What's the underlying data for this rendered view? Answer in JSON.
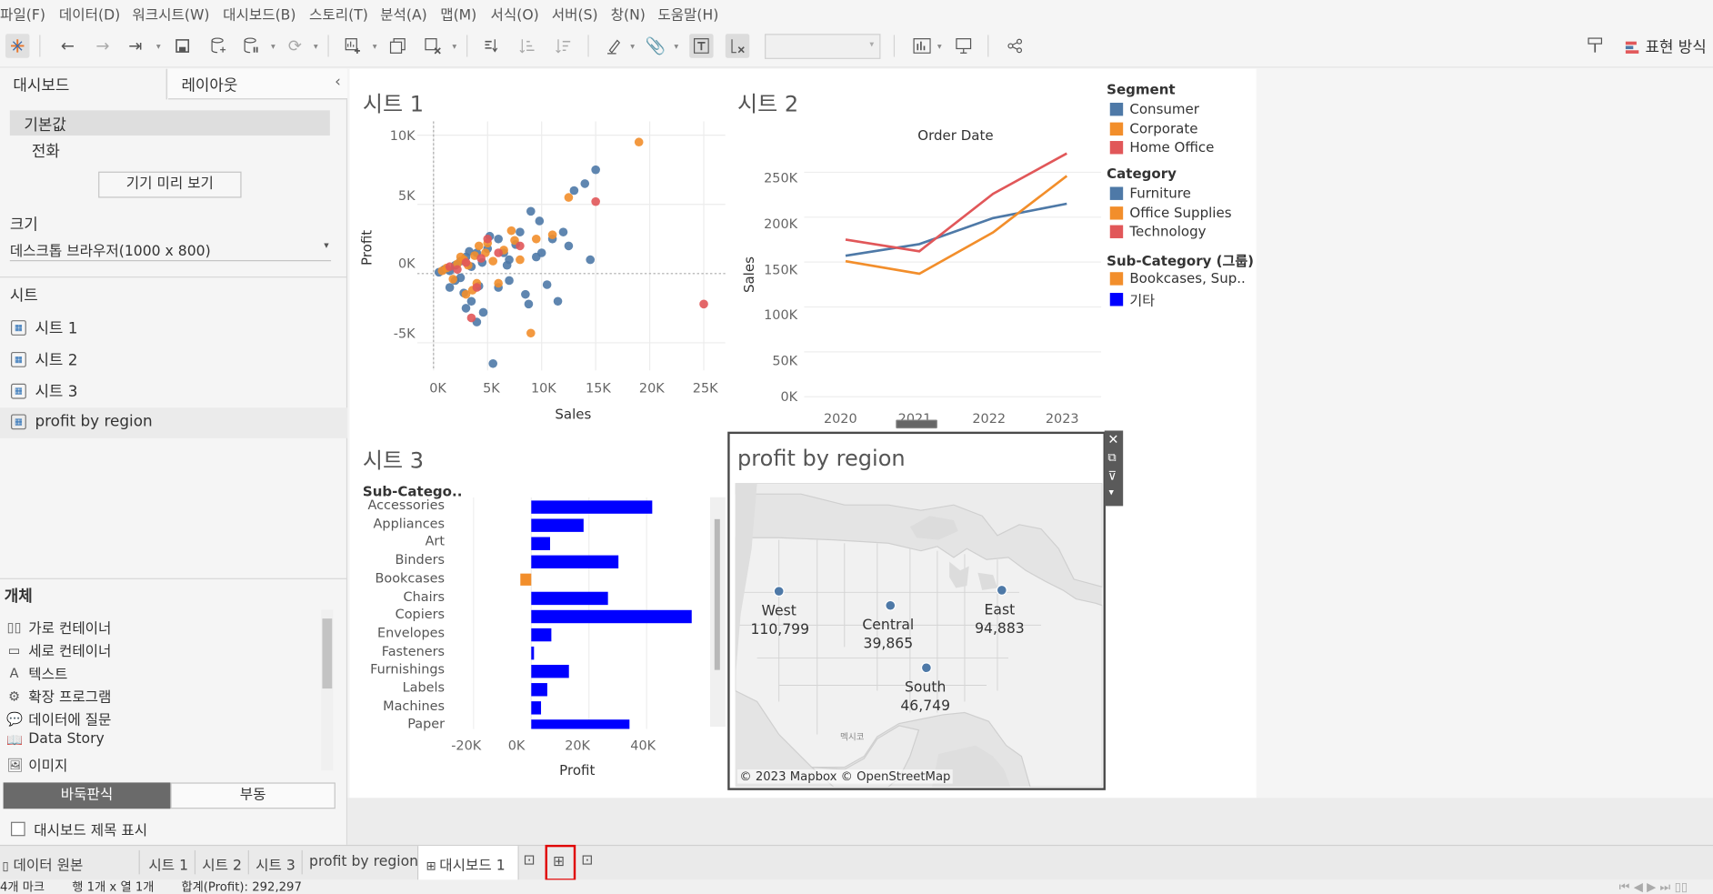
{
  "menu": [
    "파일(F)",
    "데이터(D)",
    "워크시트(W)",
    "대시보드(B)",
    "스토리(T)",
    "분석(A)",
    "맵(M)",
    "서식(O)",
    "서버(S)",
    "창(N)",
    "도움말(H)"
  ],
  "toolbar": {
    "show_me_label": "표현 방식"
  },
  "panel": {
    "tab_dashboard": "대시보드",
    "tab_layout": "레이아웃",
    "collapse": "‹",
    "devices": [
      "기본값",
      "전화"
    ],
    "preview_button": "기기 미리 보기",
    "size_heading": "크기",
    "size_value": "데스크톱 브라우저(1000 x 800)",
    "sheets_heading": "시트",
    "sheets": [
      "시트 1",
      "시트 2",
      "시트 3",
      "profit by region"
    ],
    "objects_heading": "개체",
    "objects": [
      "가로 컨테이너",
      "세로 컨테이너",
      "텍스트",
      "확장 프로그램",
      "데이터에 질문",
      "Data Story",
      "이미지"
    ],
    "object_icons": [
      "▯▯",
      "▭",
      "A",
      "⚙",
      "💬",
      "📖",
      "🖼"
    ],
    "tiled": "바둑판식",
    "floating": "부동",
    "show_title_label": "대시보드 제목 표시"
  },
  "sheet1": {
    "title": "시트 1",
    "xlabel": "Sales",
    "ylabel": "Profit",
    "xticks": [
      "0K",
      "5K",
      "10K",
      "15K",
      "20K",
      "25K"
    ],
    "yticks": [
      "10K",
      "5K",
      "0K",
      "-5K"
    ]
  },
  "sheet2": {
    "title": "시트 2",
    "header": "Order Date",
    "ylabel": "Sales",
    "yticks": [
      "250K",
      "200K",
      "150K",
      "100K",
      "50K",
      "0K"
    ],
    "xticks": [
      "2020",
      "2021",
      "2022",
      "2023"
    ]
  },
  "sheet3": {
    "title": "시트 3",
    "header": "Sub-Catego..",
    "xlabel": "Profit",
    "xticks": [
      "-20K",
      "0K",
      "20K",
      "40K"
    ]
  },
  "map": {
    "title": "profit by region",
    "attribution": "© 2023 Mapbox © OpenStreetMap",
    "regions": [
      {
        "name": "West",
        "value": "110,799"
      },
      {
        "name": "Central",
        "value": "39,865"
      },
      {
        "name": "East",
        "value": "94,883"
      },
      {
        "name": "South",
        "value": "46,749"
      }
    ],
    "label_mexico": "멕시코"
  },
  "legend": {
    "segment_title": "Segment",
    "segment": [
      {
        "name": "Consumer",
        "color": "#4e79a7"
      },
      {
        "name": "Corporate",
        "color": "#f28e2b"
      },
      {
        "name": "Home Office",
        "color": "#e15759"
      }
    ],
    "category_title": "Category",
    "category": [
      {
        "name": "Furniture",
        "color": "#4e79a7"
      },
      {
        "name": "Office Supplies",
        "color": "#f28e2b"
      },
      {
        "name": "Technology",
        "color": "#e15759"
      }
    ],
    "subcat_title": "Sub-Category (그룹)",
    "subcat": [
      {
        "name": "Bookcases, Sup..",
        "color": "#f28e2b"
      },
      {
        "name": "기타",
        "color": "#0000ff"
      }
    ]
  },
  "tabs": {
    "datasource": "데이터 원본",
    "sheets": [
      "시트 1",
      "시트 2",
      "시트 3",
      "profit by region"
    ],
    "dashboard": "대시보드 1"
  },
  "status": {
    "marks": "4개 마크",
    "rows_cols": "행 1개 x 열 1개",
    "sum": "합계(Profit): 292,297"
  },
  "chart_data": [
    {
      "type": "scatter",
      "title": "시트 1",
      "xlabel": "Sales",
      "ylabel": "Profit",
      "xlim": [
        -1500,
        27000
      ],
      "ylim": [
        -7000,
        11000
      ],
      "series": [
        {
          "name": "Consumer",
          "color": "#4e79a7",
          "points": [
            [
              500,
              100
            ],
            [
              1000,
              300
            ],
            [
              1500,
              200
            ],
            [
              2000,
              600
            ],
            [
              2500,
              900
            ],
            [
              3000,
              1200
            ],
            [
              3500,
              500
            ],
            [
              4000,
              1500
            ],
            [
              4500,
              800
            ],
            [
              5000,
              1800
            ],
            [
              6000,
              2500
            ],
            [
              7000,
              1000
            ],
            [
              8000,
              3000
            ],
            [
              9000,
              4500
            ],
            [
              10000,
              1500
            ],
            [
              11000,
              2500
            ],
            [
              12000,
              3000
            ],
            [
              13000,
              6000
            ],
            [
              14000,
              6500
            ],
            [
              15000,
              7500
            ],
            [
              14500,
              1000
            ],
            [
              11500,
              -2000
            ],
            [
              8500,
              -1500
            ],
            [
              6000,
              -1000
            ],
            [
              3500,
              -2000
            ],
            [
              4000,
              -3500
            ],
            [
              5500,
              -6500
            ],
            [
              3000,
              -2500
            ],
            [
              2000,
              -500
            ],
            [
              1500,
              -1000
            ],
            [
              2500,
              -300
            ],
            [
              7000,
              -500
            ],
            [
              6500,
              1500
            ],
            [
              9500,
              1200
            ],
            [
              12500,
              2000
            ],
            [
              8800,
              -2200
            ],
            [
              10500,
              -800
            ],
            [
              5200,
              2700
            ],
            [
              4200,
              -900
            ],
            [
              3300,
              1600
            ],
            [
              7600,
              2100
            ],
            [
              9800,
              3800
            ],
            [
              2800,
              -1400
            ],
            [
              6800,
              600
            ],
            [
              4600,
              -2800
            ]
          ]
        },
        {
          "name": "Corporate",
          "color": "#f28e2b",
          "points": [
            [
              800,
              200
            ],
            [
              1200,
              400
            ],
            [
              2200,
              700
            ],
            [
              2800,
              1000
            ],
            [
              3200,
              600
            ],
            [
              3800,
              1300
            ],
            [
              4200,
              2000
            ],
            [
              5000,
              2200
            ],
            [
              5500,
              900
            ],
            [
              6500,
              1700
            ],
            [
              7500,
              2400
            ],
            [
              8000,
              1000
            ],
            [
              9000,
              -4300
            ],
            [
              12500,
              5500
            ],
            [
              19000,
              9500
            ],
            [
              4000,
              -700
            ],
            [
              3000,
              -1500
            ],
            [
              6000,
              -700
            ],
            [
              9500,
              2500
            ],
            [
              2500,
              1200
            ],
            [
              1800,
              -400
            ],
            [
              7200,
              3100
            ],
            [
              11000,
              2800
            ],
            [
              4800,
              1500
            ],
            [
              3600,
              -1200
            ]
          ]
        },
        {
          "name": "Home Office",
          "color": "#e15759",
          "points": [
            [
              1500,
              500
            ],
            [
              3000,
              800
            ],
            [
              4000,
              -1000
            ],
            [
              3500,
              -3200
            ],
            [
              5000,
              2500
            ],
            [
              6000,
              1500
            ],
            [
              8000,
              2000
            ],
            [
              15000,
              5200
            ],
            [
              25000,
              -2200
            ],
            [
              2200,
              300
            ],
            [
              4400,
              1100
            ]
          ]
        }
      ]
    },
    {
      "type": "line",
      "title": "시트 2",
      "xlabel": "Order Date",
      "ylabel": "Sales",
      "x": [
        "2020",
        "2021",
        "2022",
        "2023"
      ],
      "ylim": [
        0,
        280000
      ],
      "series": [
        {
          "name": "Furniture",
          "color": "#4e79a7",
          "values": [
            157000,
            170000,
            199000,
            215000
          ]
        },
        {
          "name": "Office Supplies",
          "color": "#f28e2b",
          "values": [
            151000,
            137000,
            183000,
            246000
          ]
        },
        {
          "name": "Technology",
          "color": "#e15759",
          "values": [
            175000,
            162000,
            226000,
            271000
          ]
        }
      ]
    },
    {
      "type": "bar",
      "title": "시트 3",
      "xlabel": "Profit",
      "categories": [
        "Accessories",
        "Appliances",
        "Art",
        "Binders",
        "Bookcases",
        "Chairs",
        "Copiers",
        "Envelopes",
        "Fasteners",
        "Furnishings",
        "Labels",
        "Machines",
        "Paper"
      ],
      "values": [
        41937,
        18138,
        6528,
        30222,
        -3473,
        26590,
        55618,
        6964,
        950,
        13059,
        5546,
        3385,
        34054
      ],
      "colors": [
        "#0000ff",
        "#0000ff",
        "#0000ff",
        "#0000ff",
        "#f28e2b",
        "#0000ff",
        "#0000ff",
        "#0000ff",
        "#0000ff",
        "#0000ff",
        "#0000ff",
        "#0000ff",
        "#0000ff"
      ],
      "xlim": [
        -27000,
        62000
      ]
    },
    {
      "type": "map",
      "title": "profit by region",
      "categories": [
        "West",
        "Central",
        "East",
        "South"
      ],
      "values": [
        110799,
        39865,
        94883,
        46749
      ]
    }
  ]
}
